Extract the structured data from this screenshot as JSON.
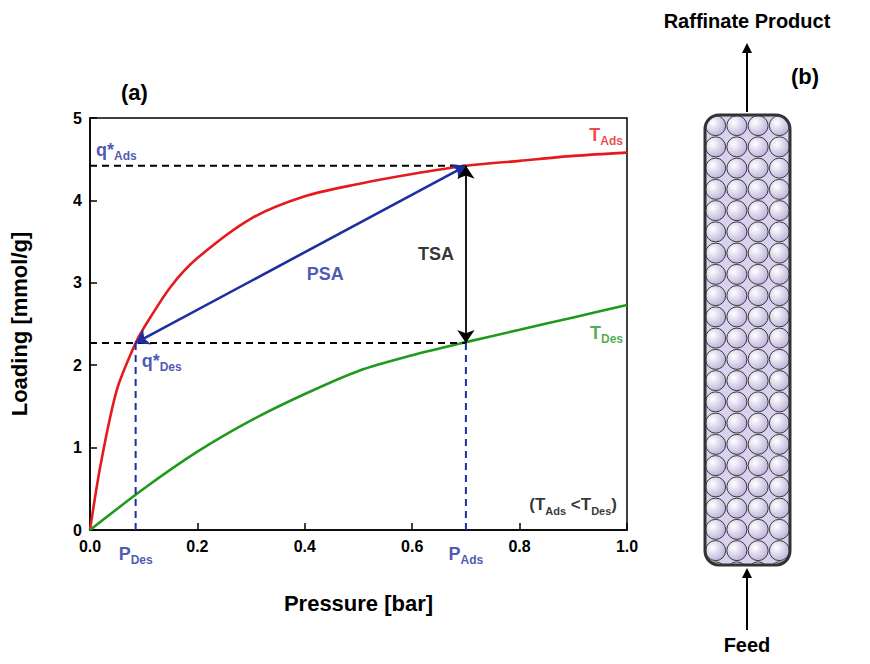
{
  "panel_label": "(a)",
  "chart_data": {
    "type": "line",
    "xlabel": "Pressure [bar]",
    "ylabel": "Loading [mmol/g]",
    "xlim": [
      0,
      1
    ],
    "ylim": [
      0,
      5
    ],
    "xticks": [
      {
        "value": 0,
        "label": "0.0"
      },
      0.2,
      0.4,
      0.6,
      0.8,
      {
        "value": 1,
        "label": "1.0"
      }
    ],
    "yticks": [
      0,
      1,
      2,
      3,
      4,
      5
    ],
    "grid": false,
    "series": [
      {
        "name": [
          {
            "text": "T"
          },
          {
            "text": "Ads",
            "subscript": true
          }
        ],
        "color": "#e41a1c",
        "line_style": "solid",
        "x": [
          0,
          0.02,
          0.05,
          0.085,
          0.1,
          0.15,
          0.2,
          0.3,
          0.4,
          0.5,
          0.6,
          0.7,
          0.8,
          0.9,
          1.0
        ],
        "values": [
          0,
          0.8,
          1.7,
          2.27,
          2.45,
          2.95,
          3.3,
          3.78,
          4.05,
          4.2,
          4.32,
          4.42,
          4.48,
          4.54,
          4.58
        ]
      },
      {
        "name": [
          {
            "text": "T"
          },
          {
            "text": "Des",
            "subscript": true
          }
        ],
        "color": "#1f9a1f",
        "line_style": "solid",
        "x": [
          0,
          0.1,
          0.2,
          0.3,
          0.4,
          0.5,
          0.6,
          0.7,
          0.8,
          0.9,
          1.0
        ],
        "values": [
          0,
          0.5,
          0.95,
          1.33,
          1.65,
          1.93,
          2.12,
          2.28,
          2.43,
          2.58,
          2.73
        ]
      }
    ],
    "annotations": {
      "q_ads": {
        "text": [
          {
            "text": "q*"
          },
          {
            "text": "Ads",
            "subscript": true
          }
        ],
        "value": 4.42,
        "color": "#1c2ea0"
      },
      "q_des": {
        "text": [
          {
            "text": "q*"
          },
          {
            "text": "Des",
            "subscript": true
          }
        ],
        "value": 2.27,
        "color": "#1c2ea0"
      },
      "p_des": {
        "text": [
          {
            "text": "P"
          },
          {
            "text": "Des",
            "subscript": true
          }
        ],
        "value": 0.085,
        "color": "#1c2ea0"
      },
      "p_ads": {
        "text": [
          {
            "text": "P"
          },
          {
            "text": "Ads",
            "subscript": true
          }
        ],
        "value": 0.7,
        "color": "#1c2ea0"
      },
      "psa": {
        "text": [
          {
            "text": "PSA"
          }
        ],
        "color": "#1c2ea0"
      },
      "tsa": {
        "text": [
          {
            "text": "TSA"
          }
        ],
        "color": "#000000"
      },
      "condition": {
        "text": [
          {
            "text": "(T"
          },
          {
            "text": "Ads",
            "subscript": true
          },
          {
            "text": " <T"
          },
          {
            "text": "Des",
            "subscript": true
          },
          {
            "text": ")"
          }
        ],
        "color": "#000000"
      }
    }
  },
  "diagram": {
    "label": "(b)",
    "top": "Raffinate Product",
    "bottom": "Feed"
  }
}
